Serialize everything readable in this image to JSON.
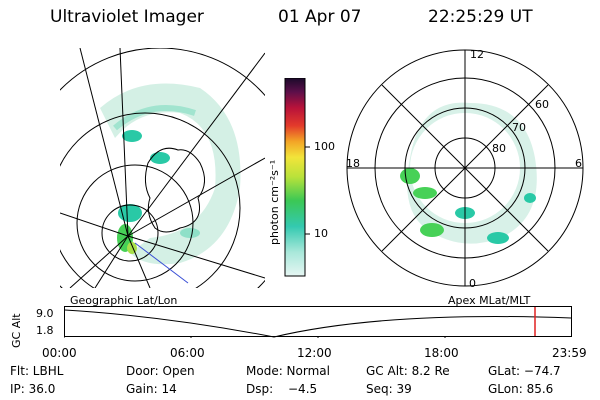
{
  "header": {
    "instrument": "Ultraviolet Imager",
    "date": "01 Apr 07",
    "time": "22:25:29 UT"
  },
  "colorbar": {
    "unit_label": "photon cm⁻²s⁻¹",
    "ticks": [
      "100",
      "10"
    ]
  },
  "polar_plot": {
    "mlt_labels": {
      "top": "12",
      "left": "18",
      "right": "6",
      "bottom": "0"
    },
    "lat_labels": [
      "60",
      "70",
      "80"
    ]
  },
  "panel_labels": {
    "geographic": "Geographic Lat/Lon",
    "apex": "Apex  MLat/MLT"
  },
  "altitude_panel": {
    "ylabel": "GC Alt",
    "ytick_top": "9.0",
    "ytick_bottom": "1.8",
    "xticks": [
      "00:00",
      "06:00",
      "12:00",
      "18:00",
      "23:59"
    ]
  },
  "info": {
    "filter": "Flt: LBHL",
    "door": "Door: Open",
    "mode": "Mode: Normal",
    "gc_alt": "GC Alt: 8.2 Re",
    "glat": "GLat: −74.7",
    "ip": "IP: 36.0",
    "gain": "Gain: 14",
    "dsp_label": "Dsp:",
    "dsp_value": "−4.5",
    "seq": "Seq: 39",
    "glon": "GLon:  85.6"
  },
  "colors": {
    "aurora_low": "#9fe3c8",
    "aurora_mid": "#29c9a6",
    "aurora_high": "#47d157",
    "time_marker": "#e02020",
    "nadir_line": "#3a4fd6"
  }
}
